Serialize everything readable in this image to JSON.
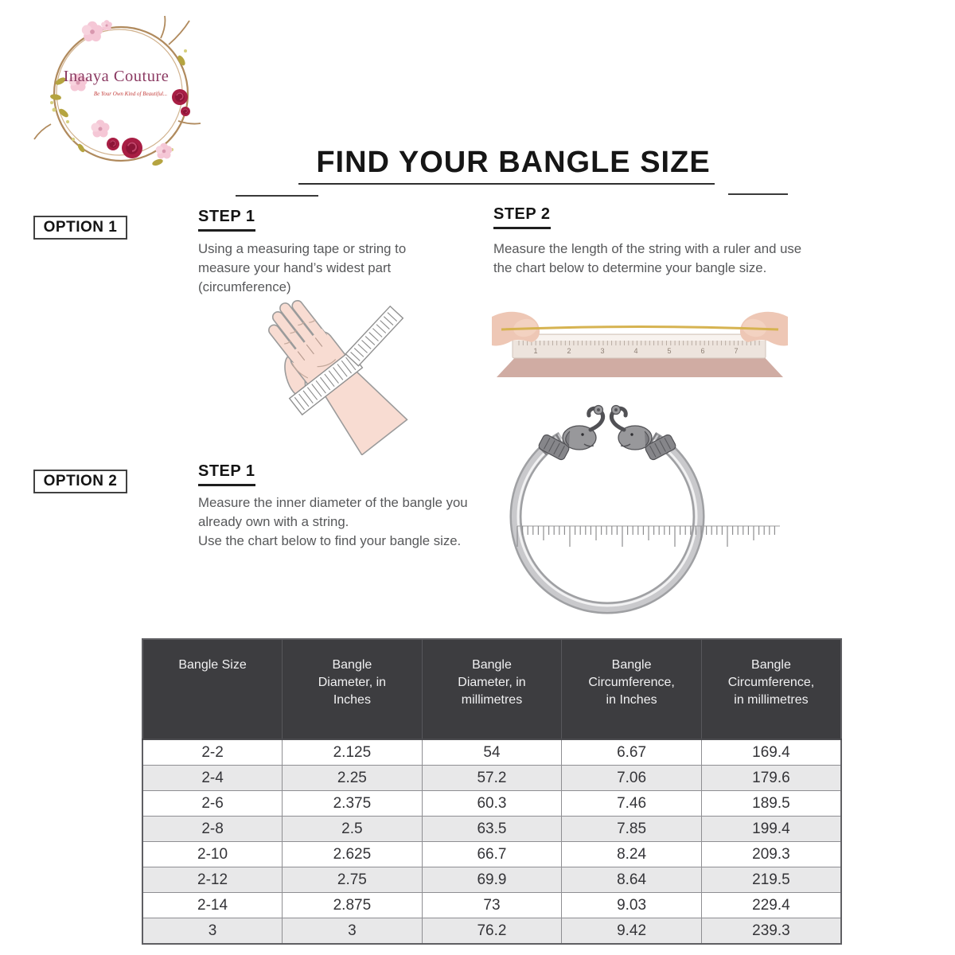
{
  "page": {
    "title": "FIND YOUR BANGLE SIZE"
  },
  "logo": {
    "brand": "Inaaya Couture",
    "tagline": "Be Your Own Kind of Beautiful..."
  },
  "options": {
    "option1": {
      "label": "OPTION 1",
      "step1": {
        "heading": "STEP 1",
        "text": "Using a measuring tape or string to measure your hand’s widest part (circumference)"
      },
      "step2": {
        "heading": "STEP 2",
        "text": "Measure the length of the string with a ruler and use the chart below to determine your bangle size."
      }
    },
    "option2": {
      "label": "OPTION 2",
      "step1": {
        "heading": "STEP 1",
        "text": "Measure the inner diameter of the bangle you already own with a string.\nUse the chart below to find your bangle size."
      }
    }
  },
  "illustrations": {
    "ruler_numbers": [
      "1",
      "2",
      "3",
      "4",
      "5",
      "6",
      "7"
    ]
  },
  "size_chart": {
    "headers": [
      "Bangle Size",
      "Bangle\nDiameter, in\nInches",
      "Bangle\nDiameter, in\nmillimetres",
      "Bangle\nCircumference,\nin Inches",
      "Bangle\nCircumference,\nin millimetres"
    ],
    "rows": [
      [
        "2-2",
        "2.125",
        "54",
        "6.67",
        "169.4"
      ],
      [
        "2-4",
        "2.25",
        "57.2",
        "7.06",
        "179.6"
      ],
      [
        "2-6",
        "2.375",
        "60.3",
        "7.46",
        "189.5"
      ],
      [
        "2-8",
        "2.5",
        "63.5",
        "7.85",
        "199.4"
      ],
      [
        "2-10",
        "2.625",
        "66.7",
        "8.24",
        "209.3"
      ],
      [
        "2-12",
        "2.75",
        "69.9",
        "8.64",
        "219.5"
      ],
      [
        "2-14",
        "2.875",
        "73",
        "9.03",
        "229.4"
      ],
      [
        "3",
        "3",
        "76.2",
        "9.42",
        "239.3"
      ]
    ]
  },
  "colors": {
    "table_header_bg": "#3d3d40",
    "table_row_alt": "#e8e8e9",
    "table_border": "#8e8e92",
    "logo_text": "#8b3a62",
    "tagline_text": "#c4403e",
    "heading_text": "#141414",
    "body_text": "#57585a"
  }
}
